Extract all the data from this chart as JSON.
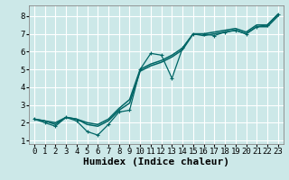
{
  "xlabel": "Humidex (Indice chaleur)",
  "bg_color": "#cce8e8",
  "grid_color": "#ffffff",
  "line_color": "#006666",
  "xlim": [
    -0.5,
    23.5
  ],
  "ylim": [
    0.8,
    8.6
  ],
  "x_ticks": [
    0,
    1,
    2,
    3,
    4,
    5,
    6,
    7,
    8,
    9,
    10,
    11,
    12,
    13,
    14,
    15,
    16,
    17,
    18,
    19,
    20,
    21,
    22,
    23
  ],
  "y_ticks": [
    1,
    2,
    3,
    4,
    5,
    6,
    7,
    8
  ],
  "series1_x": [
    0,
    1,
    2,
    3,
    4,
    5,
    6,
    7,
    8,
    9,
    10,
    11,
    12,
    13,
    14,
    15,
    16,
    17,
    18,
    19,
    20,
    21,
    22,
    23
  ],
  "series1_y": [
    2.2,
    2.0,
    1.8,
    2.3,
    2.1,
    1.5,
    1.3,
    1.9,
    2.6,
    2.7,
    5.0,
    5.9,
    5.8,
    4.5,
    6.2,
    7.0,
    7.0,
    6.9,
    7.1,
    7.2,
    7.0,
    7.4,
    7.5,
    8.1
  ],
  "series2_x": [
    0,
    1,
    2,
    3,
    4,
    5,
    6,
    7,
    8,
    9,
    10,
    11,
    12,
    13,
    14,
    15,
    16,
    17,
    18,
    19,
    20,
    21,
    22,
    23
  ],
  "series2_y": [
    2.2,
    2.1,
    2.0,
    2.3,
    2.2,
    2.0,
    1.9,
    2.2,
    2.8,
    3.3,
    5.0,
    5.3,
    5.5,
    5.8,
    6.2,
    7.0,
    7.0,
    7.1,
    7.2,
    7.3,
    7.1,
    7.5,
    7.5,
    8.1
  ],
  "series3_x": [
    0,
    1,
    2,
    3,
    4,
    5,
    6,
    7,
    8,
    9,
    10,
    11,
    12,
    13,
    14,
    15,
    16,
    17,
    18,
    19,
    20,
    21,
    22,
    23
  ],
  "series3_y": [
    2.2,
    2.1,
    1.9,
    2.3,
    2.2,
    1.9,
    1.8,
    2.1,
    2.7,
    3.1,
    4.9,
    5.2,
    5.4,
    5.7,
    6.1,
    7.0,
    6.9,
    7.0,
    7.1,
    7.2,
    7.0,
    7.4,
    7.4,
    8.0
  ],
  "tick_fontsize": 6.5,
  "xlabel_fontsize": 8
}
